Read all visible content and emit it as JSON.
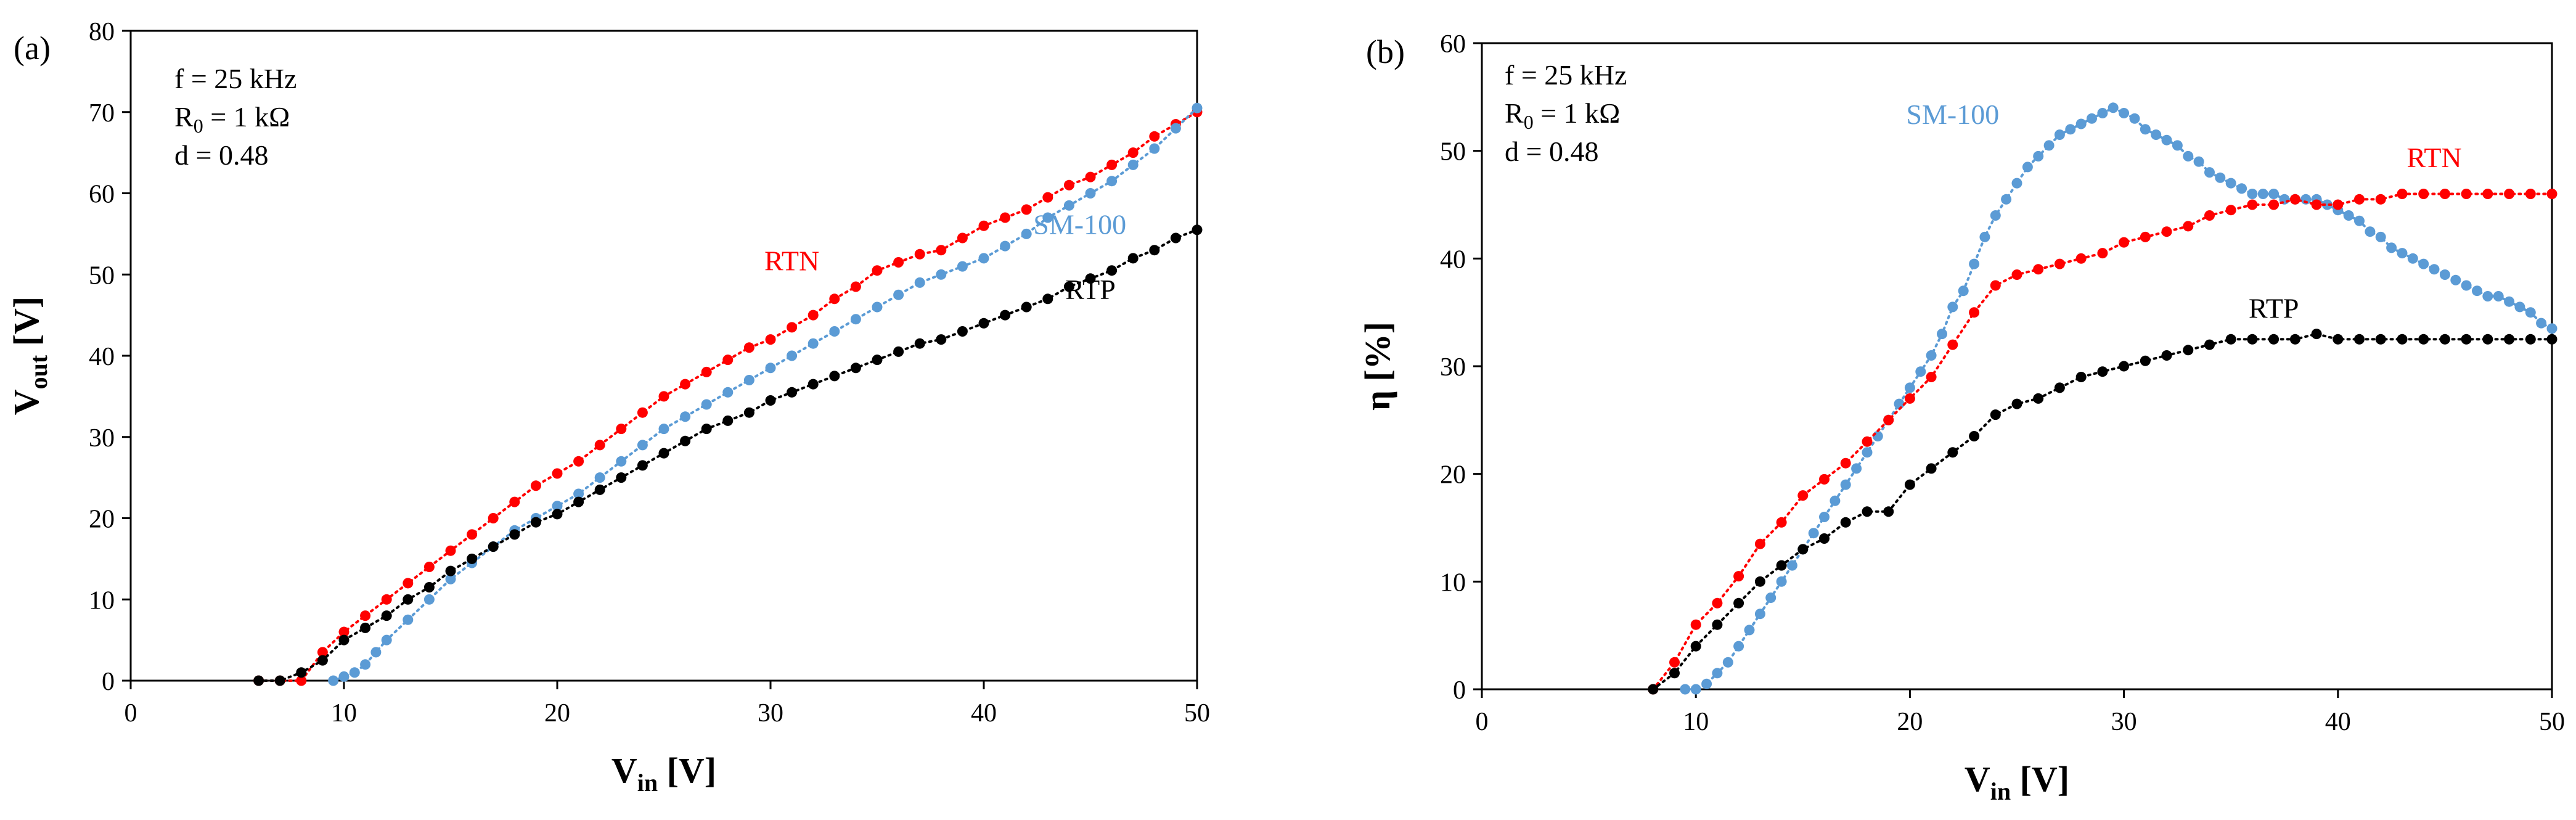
{
  "chart_data": [
    {
      "type": "scatter",
      "panel_label": "(a)",
      "xlabel": {
        "main": "V",
        "sub": "in",
        "unit": " [V]"
      },
      "ylabel": {
        "main": "V",
        "sub": "out",
        "unit": " [V]"
      },
      "xlim": [
        0,
        50
      ],
      "ylim": [
        0,
        80
      ],
      "xticks": [
        0,
        10,
        20,
        30,
        40,
        50
      ],
      "yticks": [
        0,
        10,
        20,
        30,
        40,
        50,
        60,
        70,
        80
      ],
      "grid": false,
      "annotations": [
        {
          "main": "f = 25 kHz"
        },
        {
          "main": "R",
          "sub": "0",
          "rest": " = 1 kΩ"
        },
        {
          "main": "d = 0.48"
        }
      ],
      "series": [
        {
          "name": "RTN",
          "color": "#ff0000",
          "label_at": [
            31,
            50.5
          ],
          "x": [
            6,
            7,
            8,
            9,
            10,
            11,
            12,
            13,
            14,
            15,
            16,
            17,
            18,
            19,
            20,
            21,
            22,
            23,
            24,
            25,
            26,
            27,
            28,
            29,
            30,
            31,
            32,
            33,
            34,
            35,
            36,
            37,
            38,
            39,
            40,
            41,
            42,
            43,
            44,
            45,
            46,
            47,
            48,
            49,
            50
          ],
          "values": [
            0,
            0,
            0,
            3.5,
            6,
            8,
            10,
            12,
            14,
            16,
            18,
            20,
            22,
            24,
            25.5,
            27,
            29,
            31,
            33,
            35,
            36.5,
            38,
            39.5,
            41,
            42,
            43.5,
            45,
            47,
            48.5,
            50.5,
            51.5,
            52.5,
            53,
            54.5,
            56,
            57,
            58,
            59.5,
            61,
            62,
            63.5,
            65,
            67,
            68.5,
            70
          ]
        },
        {
          "name": "SM-100",
          "color": "#5b9bd5",
          "label_at": [
            44.5,
            55
          ],
          "x": [
            9.5,
            10,
            10.5,
            11,
            11.5,
            12,
            13,
            14,
            15,
            16,
            17,
            18,
            19,
            20,
            21,
            22,
            23,
            24,
            25,
            26,
            27,
            28,
            29,
            30,
            31,
            32,
            33,
            34,
            35,
            36,
            37,
            38,
            39,
            40,
            41,
            42,
            43,
            44,
            45,
            46,
            47,
            48,
            49,
            50
          ],
          "values": [
            0,
            0.5,
            1,
            2,
            3.5,
            5,
            7.5,
            10,
            12.5,
            14.5,
            16.5,
            18.5,
            20,
            21.5,
            23,
            25,
            27,
            29,
            31,
            32.5,
            34,
            35.5,
            37,
            38.5,
            40,
            41.5,
            43,
            44.5,
            46,
            47.5,
            49,
            50,
            51,
            52,
            53.5,
            55,
            57,
            58.5,
            60,
            61.5,
            63.5,
            65.5,
            68,
            70.5
          ]
        },
        {
          "name": "RTP",
          "color": "#000000",
          "label_at": [
            45,
            47
          ],
          "x": [
            6,
            7,
            8,
            9,
            10,
            11,
            12,
            13,
            14,
            15,
            16,
            17,
            18,
            19,
            20,
            21,
            22,
            23,
            24,
            25,
            26,
            27,
            28,
            29,
            30,
            31,
            32,
            33,
            34,
            35,
            36,
            37,
            38,
            39,
            40,
            41,
            42,
            43,
            44,
            45,
            46,
            47,
            48,
            49,
            50
          ],
          "values": [
            0,
            0,
            1,
            2.5,
            5,
            6.5,
            8,
            10,
            11.5,
            13.5,
            15,
            16.5,
            18,
            19.5,
            20.5,
            22,
            23.5,
            25,
            26.5,
            28,
            29.5,
            31,
            32,
            33,
            34.5,
            35.5,
            36.5,
            37.5,
            38.5,
            39.5,
            40.5,
            41.5,
            42,
            43,
            44,
            45,
            46,
            47,
            48.5,
            49.5,
            50.5,
            52,
            53,
            54.5,
            55.5
          ]
        }
      ]
    },
    {
      "type": "scatter",
      "panel_label": "(b)",
      "xlabel": {
        "main": "V",
        "sub": "in",
        "unit": " [V]"
      },
      "ylabel": {
        "main": "η [%]"
      },
      "xlim": [
        0,
        50
      ],
      "ylim": [
        0,
        60
      ],
      "xticks": [
        0,
        10,
        20,
        30,
        40,
        50
      ],
      "yticks": [
        0,
        10,
        20,
        30,
        40,
        50,
        60
      ],
      "grid": false,
      "annotations": [
        {
          "main": "f = 25 kHz"
        },
        {
          "main": "R",
          "sub": "0",
          "rest": " = 1 kΩ"
        },
        {
          "main": "d = 0.48"
        }
      ],
      "series": [
        {
          "name": "SM-100",
          "color": "#5b9bd5",
          "label_at": [
            22,
            52.5
          ],
          "x": [
            9.5,
            10,
            10.5,
            11,
            11.5,
            12,
            12.5,
            13,
            13.5,
            14,
            14.5,
            15,
            15.5,
            16,
            16.5,
            17,
            17.5,
            18,
            18.5,
            19,
            19.5,
            20,
            20.5,
            21,
            21.5,
            22,
            22.5,
            23,
            23.5,
            24,
            24.5,
            25,
            25.5,
            26,
            26.5,
            27,
            27.5,
            28,
            28.5,
            29,
            29.5,
            30,
            30.5,
            31,
            31.5,
            32,
            32.5,
            33,
            33.5,
            34,
            34.5,
            35,
            35.5,
            36,
            36.5,
            37,
            37.5,
            38,
            38.5,
            39,
            39.5,
            40,
            40.5,
            41,
            41.5,
            42,
            42.5,
            43,
            43.5,
            44,
            44.5,
            45,
            45.5,
            46,
            46.5,
            47,
            47.5,
            48,
            48.5,
            49,
            49.5,
            50
          ],
          "values": [
            0,
            0,
            0.5,
            1.5,
            2.5,
            4,
            5.5,
            7,
            8.5,
            10,
            11.5,
            13,
            14.5,
            16,
            17.5,
            19,
            20.5,
            22,
            23.5,
            25,
            26.5,
            28,
            29.5,
            31,
            33,
            35.5,
            37,
            39.5,
            42,
            44,
            45.5,
            47,
            48.5,
            49.5,
            50.5,
            51.5,
            52,
            52.5,
            53,
            53.5,
            54,
            53.5,
            53,
            52,
            51.5,
            51,
            50.5,
            49.5,
            49,
            48,
            47.5,
            47,
            46.5,
            46,
            46,
            46,
            45.5,
            45.5,
            45.5,
            45.5,
            45,
            44.5,
            44,
            43.5,
            42.5,
            42,
            41,
            40.5,
            40,
            39.5,
            39,
            38.5,
            38,
            37.5,
            37,
            36.5,
            36.5,
            36,
            35.5,
            35,
            34,
            33.5
          ]
        },
        {
          "name": "RTN",
          "color": "#ff0000",
          "label_at": [
            44.5,
            48.5
          ],
          "x": [
            8,
            9,
            10,
            11,
            12,
            13,
            14,
            15,
            16,
            17,
            18,
            19,
            20,
            21,
            22,
            23,
            24,
            25,
            26,
            27,
            28,
            29,
            30,
            31,
            32,
            33,
            34,
            35,
            36,
            37,
            38,
            39,
            40,
            41,
            42,
            43,
            44,
            45,
            46,
            47,
            48,
            49,
            50
          ],
          "values": [
            0,
            2.5,
            6,
            8,
            10.5,
            13.5,
            15.5,
            18,
            19.5,
            21,
            23,
            25,
            27,
            29,
            32,
            35,
            37.5,
            38.5,
            39,
            39.5,
            40,
            40.5,
            41.5,
            42,
            42.5,
            43,
            44,
            44.5,
            45,
            45,
            45.5,
            45,
            45,
            45.5,
            45.5,
            46,
            46,
            46,
            46,
            46,
            46,
            46,
            46
          ]
        },
        {
          "name": "RTP",
          "color": "#000000",
          "label_at": [
            37,
            34.5
          ],
          "x": [
            8,
            9,
            10,
            11,
            12,
            13,
            14,
            15,
            16,
            17,
            18,
            19,
            20,
            21,
            22,
            23,
            24,
            25,
            26,
            27,
            28,
            29,
            30,
            31,
            32,
            33,
            34,
            35,
            36,
            37,
            38,
            39,
            40,
            41,
            42,
            43,
            44,
            45,
            46,
            47,
            48,
            49,
            50
          ],
          "values": [
            0,
            1.5,
            4,
            6,
            8,
            10,
            11.5,
            13,
            14,
            15.5,
            16.5,
            16.5,
            19,
            20.5,
            22,
            23.5,
            25.5,
            26.5,
            27,
            28,
            29,
            29.5,
            30,
            30.5,
            31,
            31.5,
            32,
            32.5,
            32.5,
            32.5,
            32.5,
            33,
            32.5,
            32.5,
            32.5,
            32.5,
            32.5,
            32.5,
            32.5,
            32.5,
            32.5,
            32.5,
            32.5
          ]
        }
      ]
    }
  ]
}
